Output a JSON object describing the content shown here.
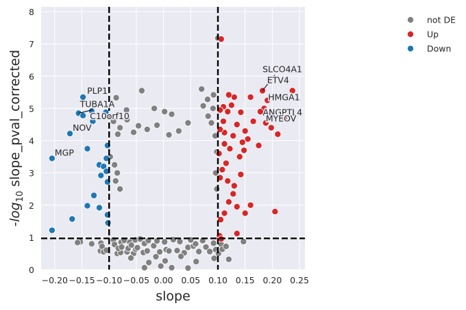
{
  "chart_data": {
    "type": "scatter",
    "xlabel": "slope",
    "ylabel_prefix": "-log",
    "ylabel_sub": "10",
    "ylabel_suffix": " slope_pval_corrected",
    "xlim": [
      -0.225,
      0.26
    ],
    "ylim": [
      0,
      8.15
    ],
    "xticks": [
      -0.2,
      -0.15,
      -0.1,
      -0.05,
      0.0,
      0.05,
      0.1,
      0.15,
      0.2,
      0.25
    ],
    "xtick_labels": [
      "−0.20",
      "−0.15",
      "−0.10",
      "−0.05",
      "0.00",
      "0.05",
      "0.10",
      "0.15",
      "0.20",
      "0.25"
    ],
    "yticks": [
      0,
      1,
      2,
      3,
      4,
      5,
      6,
      7,
      8
    ],
    "ytick_labels": [
      "0",
      "1",
      "2",
      "3",
      "4",
      "5",
      "6",
      "7",
      "8"
    ],
    "grid": true,
    "background": "#eaeaf2",
    "thresholds": {
      "x": [
        -0.1,
        0.1
      ],
      "y": 0.97
    },
    "legend_position": "upper-right-outside",
    "series": [
      {
        "name": "not DE",
        "color": "#808080",
        "points": [
          [
            -0.153,
            0.86
          ],
          [
            -0.115,
            0.82
          ],
          [
            -0.116,
            0.58
          ],
          [
            -0.113,
            0.72
          ],
          [
            -0.11,
            0.55
          ],
          [
            -0.105,
            0.6
          ],
          [
            -0.092,
            0.92
          ],
          [
            -0.085,
            0.5
          ],
          [
            -0.09,
            0.78
          ],
          [
            -0.079,
            0.53
          ],
          [
            -0.078,
            0.85
          ],
          [
            -0.083,
            0.66
          ],
          [
            -0.077,
            0.7
          ],
          [
            -0.072,
            0.91
          ],
          [
            -0.067,
            0.55
          ],
          [
            -0.062,
            0.85
          ],
          [
            -0.065,
            0.66
          ],
          [
            -0.059,
            0.76
          ],
          [
            -0.055,
            0.5
          ],
          [
            -0.052,
            0.92
          ],
          [
            -0.051,
            0.63
          ],
          [
            -0.048,
            0.68
          ],
          [
            -0.043,
            0.95
          ],
          [
            -0.037,
            0.53
          ],
          [
            -0.035,
            0.81
          ],
          [
            -0.03,
            0.58
          ],
          [
            -0.028,
            0.9
          ],
          [
            -0.018,
            0.74
          ],
          [
            -0.012,
            0.89
          ],
          [
            -0.007,
            0.55
          ],
          [
            0.002,
            0.86
          ],
          [
            0.005,
            0.62
          ],
          [
            0.01,
            0.58
          ],
          [
            0.018,
            0.93
          ],
          [
            0.025,
            0.59
          ],
          [
            0.03,
            0.87
          ],
          [
            0.038,
            0.52
          ],
          [
            0.045,
            0.69
          ],
          [
            0.05,
            0.92
          ],
          [
            0.055,
            0.73
          ],
          [
            0.059,
            0.8
          ],
          [
            0.065,
            0.56
          ],
          [
            0.072,
            0.9
          ],
          [
            0.078,
            0.7
          ],
          [
            0.085,
            0.56
          ],
          [
            0.092,
            0.82
          ],
          [
            0.096,
            0.62
          ],
          [
            0.101,
            0.5
          ],
          [
            0.106,
            0.78
          ],
          [
            0.108,
            0.63
          ],
          [
            -0.027,
            0.22
          ],
          [
            0.003,
            0.27
          ],
          [
            0.015,
            0.06
          ],
          [
            -0.014,
            0.4
          ],
          [
            0.032,
            0.41
          ],
          [
            0.045,
            0.05
          ],
          [
            -0.06,
            0.36
          ],
          [
            -0.035,
            0.06
          ],
          [
            0.06,
            0.25
          ],
          [
            -0.005,
            0.11
          ],
          [
            -0.087,
            5.33
          ],
          [
            -0.04,
            5.55
          ],
          [
            -0.017,
            5.0
          ],
          [
            0.002,
            4.9
          ],
          [
            0.015,
            4.82
          ],
          [
            0.07,
            5.6
          ],
          [
            0.081,
            5.28
          ],
          [
            0.092,
            5.42
          ],
          [
            0.073,
            5.08
          ],
          [
            0.082,
            4.76
          ],
          [
            0.091,
            5.0
          ],
          [
            -0.067,
            4.65
          ],
          [
            -0.046,
            4.46
          ],
          [
            -0.055,
            4.26
          ],
          [
            -0.03,
            4.35
          ],
          [
            -0.012,
            4.48
          ],
          [
            -0.068,
            4.95
          ],
          [
            -0.084,
            4.2
          ],
          [
            -0.092,
            4.6
          ],
          [
            -0.08,
            4.4
          ],
          [
            0.028,
            4.3
          ],
          [
            0.045,
            4.55
          ],
          [
            0.088,
            4.55
          ],
          [
            0.095,
            4.15
          ],
          [
            0.098,
            3.65
          ],
          [
            -0.098,
            3.5
          ],
          [
            -0.09,
            3.25
          ],
          [
            -0.085,
            3.0
          ],
          [
            -0.088,
            2.75
          ],
          [
            -0.08,
            2.5
          ],
          [
            0.096,
            3.0
          ],
          [
            0.098,
            2.5
          ],
          [
            0.1,
            7.18
          ],
          [
            0.147,
            0.87
          ],
          [
            0.115,
            0.72
          ],
          [
            0.093,
            0.35
          ],
          [
            0.12,
            0.32
          ],
          [
            -0.158,
            0.84
          ],
          [
            -0.132,
            0.8
          ],
          [
            0.01,
            4.18
          ]
        ]
      },
      {
        "name": "Up",
        "color": "#d62728",
        "points": [
          [
            0.106,
            7.15
          ],
          [
            0.237,
            5.55
          ],
          [
            0.182,
            5.55
          ],
          [
            0.191,
            5.25
          ],
          [
            0.185,
            5.0
          ],
          [
            0.142,
            4.88
          ],
          [
            0.16,
            5.35
          ],
          [
            0.178,
            4.9
          ],
          [
            0.165,
            4.6
          ],
          [
            0.222,
            4.7
          ],
          [
            0.198,
            4.4
          ],
          [
            0.21,
            4.2
          ],
          [
            0.15,
            4.3
          ],
          [
            0.175,
            3.85
          ],
          [
            0.188,
            4.55
          ],
          [
            0.13,
            5.35
          ],
          [
            0.125,
            5.1
          ],
          [
            0.118,
            4.9
          ],
          [
            0.12,
            5.42
          ],
          [
            0.11,
            5.05
          ],
          [
            0.104,
            4.95
          ],
          [
            0.11,
            4.6
          ],
          [
            0.135,
            4.5
          ],
          [
            0.128,
            4.15
          ],
          [
            0.145,
            3.95
          ],
          [
            0.155,
            4.05
          ],
          [
            0.112,
            4.25
          ],
          [
            0.104,
            4.35
          ],
          [
            0.122,
            3.75
          ],
          [
            0.102,
            3.6
          ],
          [
            0.115,
            3.3
          ],
          [
            0.108,
            3.1
          ],
          [
            0.104,
            2.85
          ],
          [
            0.118,
            2.75
          ],
          [
            0.13,
            2.6
          ],
          [
            0.142,
            2.95
          ],
          [
            0.128,
            2.35
          ],
          [
            0.12,
            2.1
          ],
          [
            0.135,
            1.95
          ],
          [
            0.16,
            2.0
          ],
          [
            0.112,
            1.75
          ],
          [
            0.105,
            1.55
          ],
          [
            0.15,
            1.75
          ],
          [
            0.205,
            1.8
          ],
          [
            0.135,
            1.12
          ],
          [
            0.103,
            1.05
          ],
          [
            0.106,
            0.95
          ],
          [
            0.148,
            3.7
          ],
          [
            0.14,
            3.5
          ],
          [
            0.112,
            3.9
          ]
        ]
      },
      {
        "name": "Down",
        "color": "#1f77b4",
        "points": [
          [
            -0.148,
            5.35
          ],
          [
            -0.132,
            4.92
          ],
          [
            -0.106,
            4.88
          ],
          [
            -0.156,
            4.85
          ],
          [
            -0.148,
            4.78
          ],
          [
            -0.13,
            4.6
          ],
          [
            -0.172,
            4.22
          ],
          [
            -0.205,
            3.45
          ],
          [
            -0.14,
            3.75
          ],
          [
            -0.118,
            3.25
          ],
          [
            -0.11,
            3.2
          ],
          [
            -0.105,
            3.45
          ],
          [
            -0.105,
            3.05
          ],
          [
            -0.115,
            2.92
          ],
          [
            -0.103,
            2.72
          ],
          [
            -0.128,
            2.3
          ],
          [
            -0.14,
            1.98
          ],
          [
            -0.118,
            1.92
          ],
          [
            -0.103,
            1.7
          ],
          [
            -0.102,
            1.45
          ],
          [
            -0.168,
            1.57
          ],
          [
            -0.205,
            1.22
          ],
          [
            -0.103,
            3.85
          ]
        ]
      }
    ],
    "dense_cloud_note": "",
    "annotations": [
      {
        "label": "SLCO4A1",
        "x": 0.182,
        "y": 5.55
      },
      {
        "label": "ETV4",
        "x": 0.237,
        "y": 5.55
      },
      {
        "label": "HMGA1",
        "x": 0.191,
        "y": 5.25
      },
      {
        "label": "ANGPTL4",
        "x": 0.185,
        "y": 5.0
      },
      {
        "label": "MYEOV",
        "x": 0.222,
        "y": 4.7
      },
      {
        "label": "PLP1",
        "x": -0.148,
        "y": 5.35
      },
      {
        "label": "TUBA1A",
        "x": -0.156,
        "y": 4.85
      },
      {
        "label": "C10orf10",
        "x": -0.148,
        "y": 4.78
      },
      {
        "label": "NOV",
        "x": -0.172,
        "y": 4.22
      },
      {
        "label": "MGP",
        "x": -0.205,
        "y": 3.45
      }
    ]
  }
}
